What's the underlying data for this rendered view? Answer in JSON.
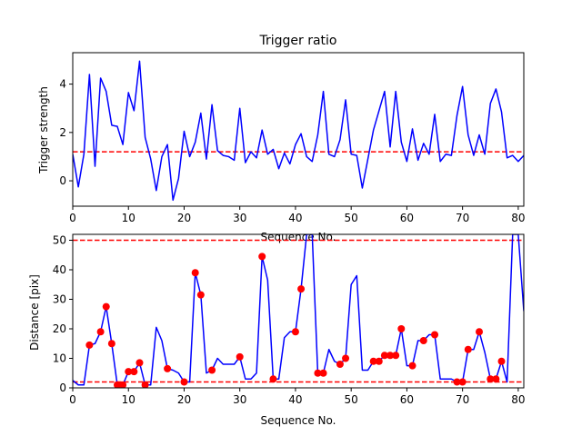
{
  "chart_data": [
    {
      "type": "line",
      "title": "Trigger ratio",
      "xlabel": "Sequence No.",
      "ylabel": "Trigger strength",
      "xlim": [
        0,
        81
      ],
      "ylim": [
        -1.05,
        5.3
      ],
      "xticks": [
        0,
        10,
        20,
        30,
        40,
        50,
        60,
        70,
        80
      ],
      "yticks": [
        0,
        2,
        4
      ],
      "grid": false,
      "line_color": "#0000ff",
      "threshold": {
        "value": 1.2,
        "color": "#ff0000",
        "style": "dashed"
      },
      "x": [
        0,
        1,
        2,
        3,
        4,
        5,
        6,
        7,
        8,
        9,
        10,
        11,
        12,
        13,
        14,
        15,
        16,
        17,
        18,
        19,
        20,
        21,
        22,
        23,
        24,
        25,
        26,
        27,
        28,
        29,
        30,
        31,
        32,
        33,
        34,
        35,
        36,
        37,
        38,
        39,
        40,
        41,
        42,
        43,
        44,
        45,
        46,
        47,
        48,
        49,
        50,
        51,
        52,
        53,
        54,
        55,
        56,
        57,
        58,
        59,
        60,
        61,
        62,
        63,
        64,
        65,
        66,
        67,
        68,
        69,
        70,
        71,
        72,
        73,
        74,
        75,
        76,
        77,
        78,
        79,
        80,
        81
      ],
      "y": [
        1.1,
        -0.25,
        1.1,
        4.4,
        0.6,
        4.25,
        3.7,
        2.3,
        2.25,
        1.5,
        3.65,
        2.9,
        4.95,
        1.8,
        0.9,
        -0.4,
        1.0,
        1.5,
        -0.8,
        0.1,
        2.05,
        1.0,
        1.6,
        2.8,
        0.9,
        3.15,
        1.25,
        1.05,
        1.0,
        0.85,
        3.0,
        0.75,
        1.2,
        0.95,
        2.1,
        1.1,
        1.3,
        0.5,
        1.15,
        0.7,
        1.5,
        1.95,
        1.0,
        0.8,
        1.9,
        3.7,
        1.1,
        1.0,
        1.7,
        3.35,
        1.1,
        1.05,
        -0.3,
        0.9,
        2.1,
        2.9,
        3.7,
        1.4,
        3.7,
        1.6,
        0.8,
        2.15,
        0.85,
        1.55,
        1.1,
        2.75,
        0.8,
        1.1,
        1.05,
        2.7,
        3.9,
        1.9,
        1.05,
        1.9,
        1.1,
        3.2,
        3.8,
        2.85,
        0.95,
        1.05,
        0.8,
        1.05
      ]
    },
    {
      "type": "line",
      "title": "",
      "xlabel": "Sequence No.",
      "ylabel": "Distance [pix]",
      "xlim": [
        0,
        81
      ],
      "ylim": [
        0,
        52
      ],
      "xticks": [
        0,
        10,
        20,
        30,
        40,
        50,
        60,
        70,
        80
      ],
      "yticks": [
        0,
        10,
        20,
        30,
        40,
        50
      ],
      "grid": false,
      "line_color": "#0000ff",
      "marker_color": "#ff0000",
      "thresholds": [
        {
          "value": 50,
          "color": "#ff0000",
          "style": "dashed"
        },
        {
          "value": 2,
          "color": "#ff0000",
          "style": "dashed"
        }
      ],
      "x": [
        0,
        1,
        2,
        3,
        4,
        5,
        6,
        7,
        8,
        9,
        10,
        11,
        12,
        13,
        14,
        15,
        16,
        17,
        18,
        19,
        20,
        21,
        22,
        23,
        24,
        25,
        26,
        27,
        28,
        29,
        30,
        31,
        32,
        33,
        34,
        35,
        36,
        37,
        38,
        39,
        40,
        41,
        42,
        43,
        44,
        45,
        46,
        47,
        48,
        49,
        50,
        51,
        52,
        53,
        54,
        55,
        56,
        57,
        58,
        59,
        60,
        61,
        62,
        63,
        64,
        65,
        66,
        67,
        68,
        69,
        70,
        71,
        72,
        73,
        74,
        75,
        76,
        77,
        78,
        79,
        80,
        81
      ],
      "y": [
        2.5,
        1,
        1,
        14.5,
        15,
        19,
        27.5,
        15,
        1,
        1,
        5.5,
        5.5,
        8.5,
        1,
        1,
        20.5,
        16,
        6.5,
        6,
        5,
        2,
        2,
        39,
        31.5,
        5,
        6,
        10,
        8,
        8,
        8,
        10.5,
        3,
        3,
        5,
        44.5,
        36.5,
        3,
        3,
        17,
        19,
        19,
        33.5,
        52,
        52,
        5,
        5,
        13,
        9,
        8,
        10,
        35,
        38,
        6,
        6,
        9,
        9,
        11,
        11,
        11,
        20,
        7.5,
        7.5,
        16,
        16,
        18,
        18,
        3,
        3,
        3,
        2,
        2,
        13,
        13,
        19,
        12,
        3,
        3,
        9,
        2,
        52,
        52,
        26
      ],
      "markers": [
        {
          "x": 3,
          "y": 14.5
        },
        {
          "x": 5,
          "y": 19
        },
        {
          "x": 6,
          "y": 27.5
        },
        {
          "x": 7,
          "y": 15
        },
        {
          "x": 8,
          "y": 1
        },
        {
          "x": 9,
          "y": 1
        },
        {
          "x": 10,
          "y": 5.5
        },
        {
          "x": 11,
          "y": 5.5
        },
        {
          "x": 12,
          "y": 8.5
        },
        {
          "x": 13,
          "y": 1
        },
        {
          "x": 17,
          "y": 6.5
        },
        {
          "x": 20,
          "y": 2
        },
        {
          "x": 22,
          "y": 39
        },
        {
          "x": 23,
          "y": 31.5
        },
        {
          "x": 25,
          "y": 6
        },
        {
          "x": 30,
          "y": 10.5
        },
        {
          "x": 34,
          "y": 44.5
        },
        {
          "x": 36,
          "y": 3
        },
        {
          "x": 40,
          "y": 19
        },
        {
          "x": 41,
          "y": 33.5
        },
        {
          "x": 44,
          "y": 5
        },
        {
          "x": 45,
          "y": 5
        },
        {
          "x": 48,
          "y": 8
        },
        {
          "x": 49,
          "y": 10
        },
        {
          "x": 54,
          "y": 9
        },
        {
          "x": 55,
          "y": 9
        },
        {
          "x": 56,
          "y": 11
        },
        {
          "x": 57,
          "y": 11
        },
        {
          "x": 58,
          "y": 11
        },
        {
          "x": 59,
          "y": 20
        },
        {
          "x": 61,
          "y": 7.5
        },
        {
          "x": 63,
          "y": 16
        },
        {
          "x": 65,
          "y": 18
        },
        {
          "x": 69,
          "y": 2
        },
        {
          "x": 70,
          "y": 2
        },
        {
          "x": 71,
          "y": 13
        },
        {
          "x": 73,
          "y": 19
        },
        {
          "x": 75,
          "y": 3
        },
        {
          "x": 76,
          "y": 3
        },
        {
          "x": 77,
          "y": 9
        }
      ]
    }
  ]
}
